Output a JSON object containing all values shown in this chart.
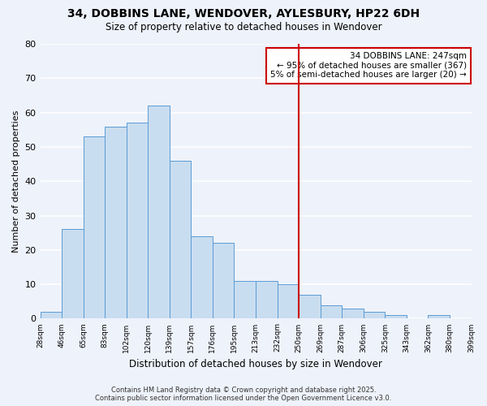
{
  "title": "34, DOBBINS LANE, WENDOVER, AYLESBURY, HP22 6DH",
  "subtitle": "Size of property relative to detached houses in Wendover",
  "xlabel": "Distribution of detached houses by size in Wendover",
  "ylabel": "Number of detached properties",
  "bin_labels": [
    "28sqm",
    "46sqm",
    "65sqm",
    "83sqm",
    "102sqm",
    "120sqm",
    "139sqm",
    "157sqm",
    "176sqm",
    "195sqm",
    "213sqm",
    "232sqm",
    "250sqm",
    "269sqm",
    "287sqm",
    "306sqm",
    "325sqm",
    "343sqm",
    "362sqm",
    "380sqm",
    "399sqm"
  ],
  "bar_values": [
    2,
    26,
    53,
    56,
    57,
    62,
    46,
    24,
    22,
    11,
    11,
    10,
    7,
    4,
    3,
    2,
    1,
    0,
    1,
    0
  ],
  "bar_color": "#c9ddf0",
  "bar_edge_color": "#5b9bd5",
  "vline_index": 12,
  "vline_color": "#cc0000",
  "ylim": [
    0,
    80
  ],
  "yticks": [
    0,
    10,
    20,
    30,
    40,
    50,
    60,
    70,
    80
  ],
  "annotation_title": "34 DOBBINS LANE: 247sqm",
  "annotation_line1": "← 95% of detached houses are smaller (367)",
  "annotation_line2": "5% of semi-detached houses are larger (20) →",
  "annotation_box_edge": "#cc0000",
  "footer_line1": "Contains HM Land Registry data © Crown copyright and database right 2025.",
  "footer_line2": "Contains public sector information licensed under the Open Government Licence v3.0.",
  "background_color": "#eef2fa",
  "grid_color": "#ffffff"
}
